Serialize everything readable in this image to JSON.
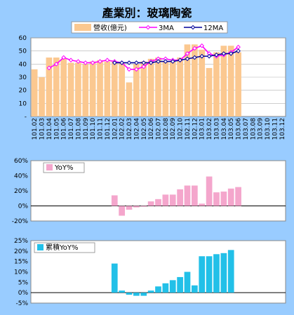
{
  "title": "產業別：玻璃陶瓷",
  "chart_data": [
    {
      "type": "bar",
      "title": "產業別：玻璃陶瓷",
      "categories": [
        "101.02",
        "101.03",
        "101.04",
        "101.05",
        "101.06",
        "101.07",
        "101.08",
        "101.09",
        "101.10",
        "101.11",
        "101.12",
        "102.01",
        "102.02",
        "102.03",
        "102.04",
        "102.05",
        "102.06",
        "102.07",
        "102.08",
        "102.09",
        "102.10",
        "102.11",
        "102.12",
        "103.01",
        "103.02",
        "103.03",
        "103.04",
        "103.05",
        "103.06",
        "103.07",
        "103.08",
        "103.09",
        "103.10",
        "103.11",
        "103.12"
      ],
      "ylim": [
        0,
        60
      ],
      "yticks": [
        "-",
        "10",
        "20",
        "30",
        "40",
        "50",
        "60"
      ],
      "series": [
        {
          "name": "營收(億元)",
          "kind": "bar",
          "color": "#fbc890",
          "values": [
            36,
            30,
            45,
            45,
            44,
            41,
            41,
            40,
            42,
            43,
            42,
            42,
            41,
            26,
            40,
            42,
            44,
            45,
            42,
            42,
            45,
            55,
            55,
            51,
            37,
            49,
            54,
            54,
            49,
            null,
            null,
            null,
            null,
            null,
            null
          ]
        },
        {
          "name": "3MA",
          "kind": "line",
          "color": "#ff00ff",
          "values": [
            null,
            null,
            37,
            40,
            45,
            43,
            42,
            41,
            41,
            42,
            43,
            42,
            41,
            36,
            36,
            38,
            42,
            44,
            44,
            43,
            43,
            48,
            52,
            54,
            48,
            46,
            47,
            49,
            53,
            null,
            null,
            null,
            null,
            null,
            null
          ]
        },
        {
          "name": "12MA",
          "kind": "line",
          "color": "#000099",
          "values": [
            null,
            null,
            null,
            null,
            null,
            null,
            null,
            null,
            null,
            null,
            null,
            41,
            41,
            41,
            41,
            41,
            41,
            42,
            42,
            42,
            43,
            44,
            45,
            46,
            46,
            47,
            48,
            48,
            50,
            null,
            null,
            null,
            null,
            null,
            null
          ]
        }
      ],
      "legend_placement": "top"
    },
    {
      "type": "bar",
      "ylim": [
        -20,
        60
      ],
      "yticks": [
        "-20%",
        "0%",
        "20%",
        "40%",
        "60%"
      ],
      "series": [
        {
          "name": "YoY%",
          "color": "#f4a6cc",
          "values": [
            null,
            null,
            null,
            null,
            null,
            null,
            null,
            null,
            null,
            null,
            null,
            14,
            -13,
            -5,
            -2,
            -1,
            6,
            9,
            15,
            15,
            22,
            27,
            27,
            3,
            39,
            18,
            19,
            23,
            25,
            null,
            null,
            null,
            null,
            null,
            null
          ]
        }
      ],
      "legend_placement": "top-left"
    },
    {
      "type": "bar",
      "ylim": [
        -5,
        25
      ],
      "yticks": [
        "-5%",
        "0%",
        "5%",
        "10%",
        "15%",
        "20%",
        "25%"
      ],
      "series": [
        {
          "name": "累積YoY%",
          "color": "#22c0e8",
          "values": [
            null,
            null,
            null,
            null,
            null,
            null,
            null,
            null,
            null,
            null,
            null,
            14,
            1,
            -1,
            -1.5,
            -1.5,
            1,
            3,
            4.5,
            6,
            7.5,
            10,
            3.5,
            17.5,
            17.5,
            18.5,
            19,
            20.5,
            null,
            null,
            null,
            null,
            null,
            null,
            null
          ]
        }
      ],
      "legend_placement": "top-left"
    }
  ]
}
